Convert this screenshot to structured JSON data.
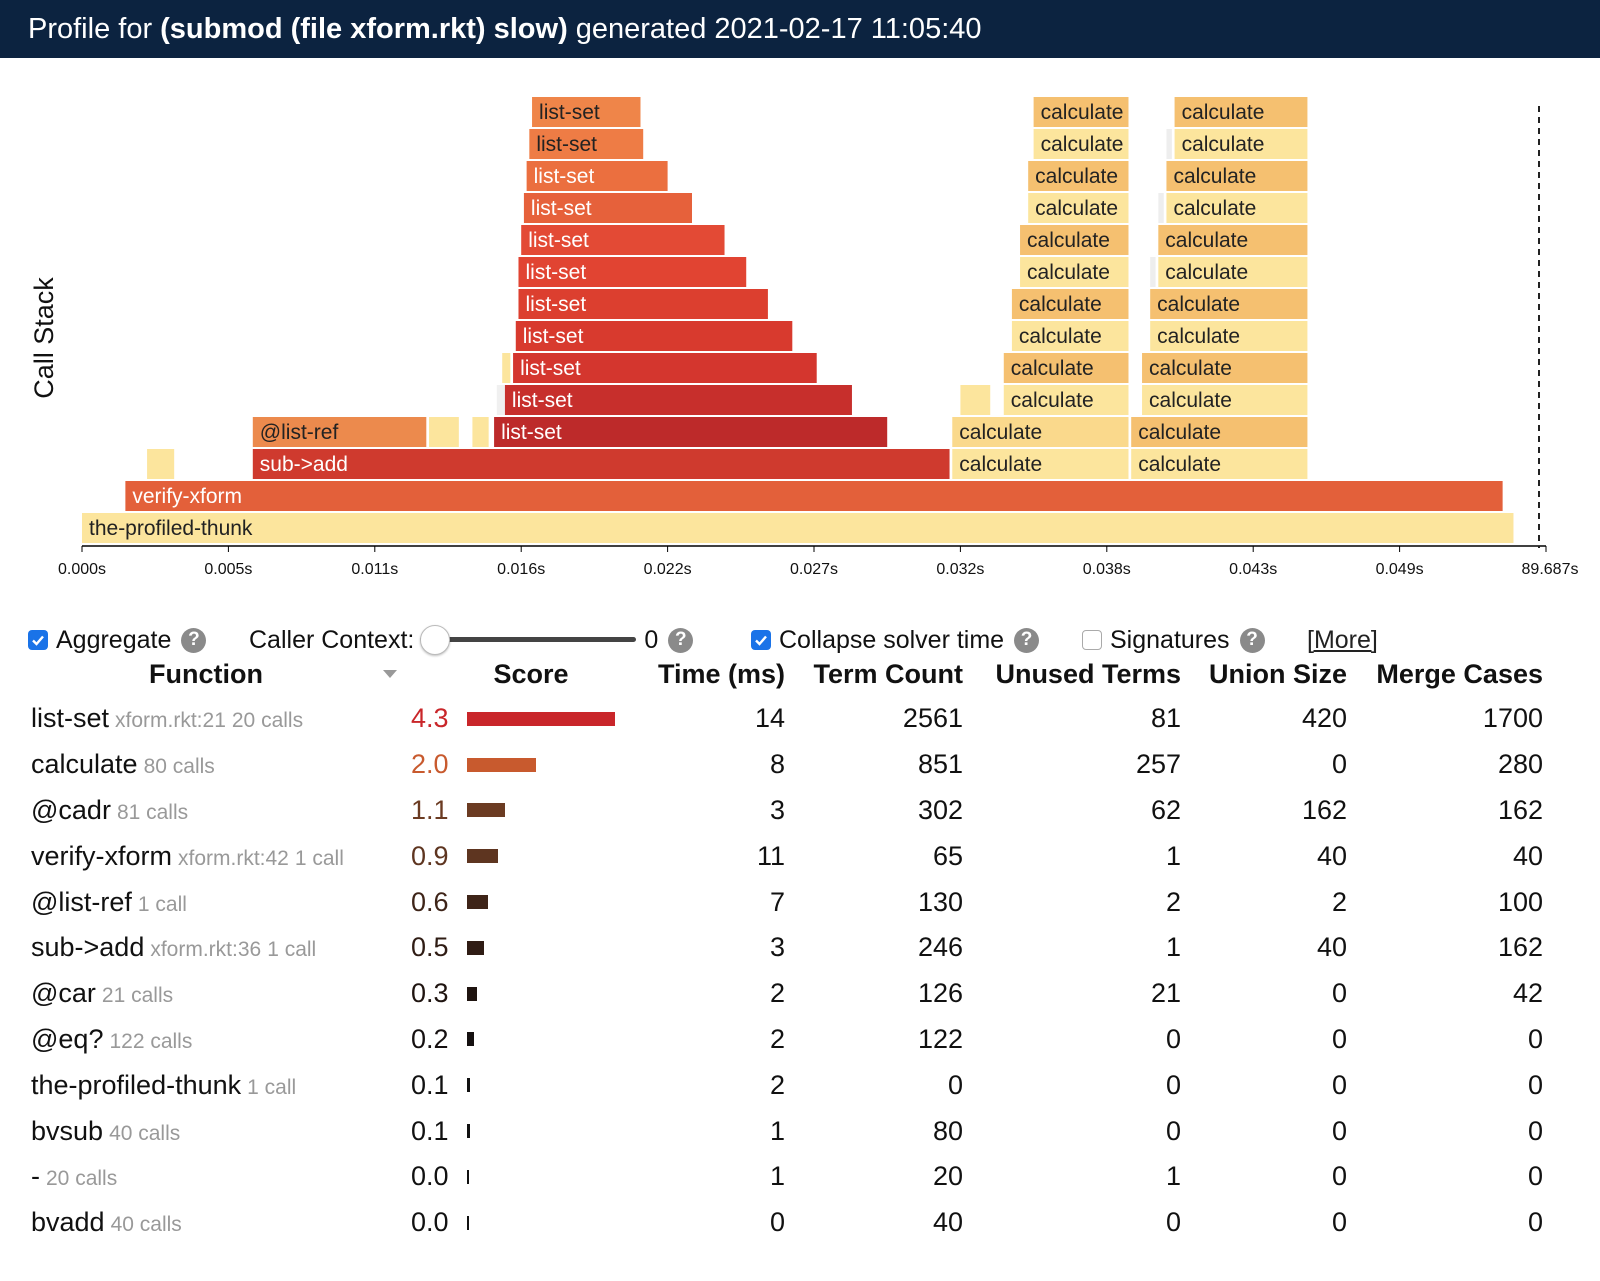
{
  "header": {
    "prefix": "Profile for",
    "name": "(submod (file xform.rkt) slow)",
    "generated_label": "generated",
    "generated_time": "2021-02-17 11:05:40"
  },
  "flamegraph": {
    "y_axis_label": "Call Stack",
    "ticks": [
      "0.000s",
      "0.005s",
      "0.011s",
      "0.016s",
      "0.022s",
      "0.027s",
      "0.032s",
      "0.038s",
      "0.043s",
      "0.049s",
      "89.687s"
    ],
    "frames": [
      {
        "label": "the-profiled-thunk",
        "t0": 0.0,
        "t1": 0.0528,
        "depth": 0,
        "color": "#fce59d"
      },
      {
        "label": "verify-xform",
        "t0": 0.0016,
        "t1": 0.0524,
        "depth": 1,
        "color": "#e3603a"
      },
      {
        "label": "",
        "t0": 0.0024,
        "t1": 0.0034,
        "depth": 2,
        "color": "#fce59d"
      },
      {
        "label": "sub->add",
        "t0": 0.0063,
        "t1": 0.032,
        "depth": 2,
        "color": "#cf3a2e"
      },
      {
        "label": "calculate",
        "t0": 0.0321,
        "t1": 0.0386,
        "depth": 2,
        "color": "#fce59d"
      },
      {
        "label": "calculate",
        "t0": 0.0387,
        "t1": 0.0452,
        "depth": 2,
        "color": "#fce59d"
      },
      {
        "label": "@list-ref",
        "t0": 0.0063,
        "t1": 0.0127,
        "depth": 3,
        "color": "#ec8a4d"
      },
      {
        "label": "",
        "t0": 0.0128,
        "t1": 0.0139,
        "depth": 3,
        "color": "#fce59d"
      },
      {
        "label": "",
        "t0": 0.0144,
        "t1": 0.015,
        "depth": 3,
        "color": "#fce59d"
      },
      {
        "label": "list-set",
        "t0": 0.0152,
        "t1": 0.0297,
        "depth": 3,
        "color": "#bd2a2a"
      },
      {
        "label": "calculate",
        "t0": 0.0321,
        "t1": 0.0386,
        "depth": 3,
        "color": "#fad98c"
      },
      {
        "label": "calculate",
        "t0": 0.0387,
        "t1": 0.0452,
        "depth": 3,
        "color": "#f5c070"
      },
      {
        "label": "",
        "t0": 0.0153,
        "t1": 0.0156,
        "depth": 4,
        "color": "#f0f0f0"
      },
      {
        "label": "list-set",
        "t0": 0.0156,
        "t1": 0.0284,
        "depth": 4,
        "color": "#c72f2c"
      },
      {
        "label": "",
        "t0": 0.0324,
        "t1": 0.0335,
        "depth": 4,
        "color": "#fce59d"
      },
      {
        "label": "calculate",
        "t0": 0.034,
        "t1": 0.0386,
        "depth": 4,
        "color": "#fce59d"
      },
      {
        "label": "calculate",
        "t0": 0.0391,
        "t1": 0.0452,
        "depth": 4,
        "color": "#fce59d"
      },
      {
        "label": "",
        "t0": 0.0155,
        "t1": 0.0158,
        "depth": 5,
        "color": "#fce59d"
      },
      {
        "label": "list-set",
        "t0": 0.0159,
        "t1": 0.0271,
        "depth": 5,
        "color": "#d4362e"
      },
      {
        "label": "calculate",
        "t0": 0.034,
        "t1": 0.0386,
        "depth": 5,
        "color": "#f5c070"
      },
      {
        "label": "calculate",
        "t0": 0.0391,
        "t1": 0.0452,
        "depth": 5,
        "color": "#f5c070"
      },
      {
        "label": "list-set",
        "t0": 0.016,
        "t1": 0.0262,
        "depth": 6,
        "color": "#d83a2e"
      },
      {
        "label": "calculate",
        "t0": 0.0343,
        "t1": 0.0386,
        "depth": 6,
        "color": "#fce59d"
      },
      {
        "label": "calculate",
        "t0": 0.0394,
        "t1": 0.0452,
        "depth": 6,
        "color": "#fce59d"
      },
      {
        "label": "list-set",
        "t0": 0.0161,
        "t1": 0.0253,
        "depth": 7,
        "color": "#dc3f2f"
      },
      {
        "label": "calculate",
        "t0": 0.0343,
        "t1": 0.0386,
        "depth": 7,
        "color": "#f5c070"
      },
      {
        "label": "calculate",
        "t0": 0.0394,
        "t1": 0.0452,
        "depth": 7,
        "color": "#f5c070"
      },
      {
        "label": "list-set",
        "t0": 0.0161,
        "t1": 0.0245,
        "depth": 8,
        "color": "#e14432"
      },
      {
        "label": "calculate",
        "t0": 0.0346,
        "t1": 0.0386,
        "depth": 8,
        "color": "#fce59d"
      },
      {
        "label": "",
        "t0": 0.0394,
        "t1": 0.0396,
        "depth": 8,
        "color": "#eeeeee"
      },
      {
        "label": "calculate",
        "t0": 0.0397,
        "t1": 0.0452,
        "depth": 8,
        "color": "#fce59d"
      },
      {
        "label": "list-set",
        "t0": 0.0162,
        "t1": 0.0237,
        "depth": 9,
        "color": "#e34a35"
      },
      {
        "label": "calculate",
        "t0": 0.0346,
        "t1": 0.0386,
        "depth": 9,
        "color": "#f5c070"
      },
      {
        "label": "calculate",
        "t0": 0.0397,
        "t1": 0.0452,
        "depth": 9,
        "color": "#f5c070"
      },
      {
        "label": "list-set",
        "t0": 0.0163,
        "t1": 0.0225,
        "depth": 10,
        "color": "#e6613b"
      },
      {
        "label": "calculate",
        "t0": 0.0349,
        "t1": 0.0386,
        "depth": 10,
        "color": "#fce59d"
      },
      {
        "label": "",
        "t0": 0.0397,
        "t1": 0.0399,
        "depth": 10,
        "color": "#eeeeee"
      },
      {
        "label": "calculate",
        "t0": 0.04,
        "t1": 0.0452,
        "depth": 10,
        "color": "#fce59d"
      },
      {
        "label": "list-set",
        "t0": 0.0164,
        "t1": 0.0216,
        "depth": 11,
        "color": "#eb6f3f"
      },
      {
        "label": "calculate",
        "t0": 0.0349,
        "t1": 0.0386,
        "depth": 11,
        "color": "#f5c070"
      },
      {
        "label": "calculate",
        "t0": 0.04,
        "t1": 0.0452,
        "depth": 11,
        "color": "#f5c070"
      },
      {
        "label": "list-set",
        "t0": 0.0165,
        "t1": 0.0207,
        "depth": 12,
        "color": "#ee7c45"
      },
      {
        "label": "calculate",
        "t0": 0.0351,
        "t1": 0.0386,
        "depth": 12,
        "color": "#fce59d"
      },
      {
        "label": "",
        "t0": 0.04,
        "t1": 0.0402,
        "depth": 12,
        "color": "#eeeeee"
      },
      {
        "label": "calculate",
        "t0": 0.0403,
        "t1": 0.0452,
        "depth": 12,
        "color": "#fce59d"
      },
      {
        "label": "list-set",
        "t0": 0.0166,
        "t1": 0.0206,
        "depth": 13,
        "color": "#ef8549"
      },
      {
        "label": "calculate",
        "t0": 0.0351,
        "t1": 0.0386,
        "depth": 13,
        "color": "#f5c070"
      },
      {
        "label": "calculate",
        "t0": 0.0403,
        "t1": 0.0452,
        "depth": 13,
        "color": "#f5c070"
      }
    ]
  },
  "controls": {
    "aggregate_label": "Aggregate",
    "caller_context_label": "Caller Context:",
    "caller_context_value": "0",
    "collapse_label": "Collapse solver time",
    "signatures_label": "Signatures",
    "more_label": "[More]",
    "aggregate_checked": true,
    "collapse_checked": true,
    "signatures_checked": false
  },
  "table": {
    "headers": {
      "function": "Function",
      "score": "Score",
      "time": "Time (ms)",
      "term_count": "Term Count",
      "unused_terms": "Unused Terms",
      "union_size": "Union Size",
      "merge_cases": "Merge Cases"
    },
    "rows": [
      {
        "name": "list-set",
        "source": "xform.rkt:21",
        "calls": "20 calls",
        "score": "4.3",
        "score_num": 4.3,
        "score_color": "#c9262a",
        "time": "14",
        "term_count": "2561",
        "unused_terms": "81",
        "union_size": "420",
        "merge_cases": "1700"
      },
      {
        "name": "calculate",
        "source": "",
        "calls": "80 calls",
        "score": "2.0",
        "score_num": 2.0,
        "score_color": "#c85a2e",
        "time": "8",
        "term_count": "851",
        "unused_terms": "257",
        "union_size": "0",
        "merge_cases": "280"
      },
      {
        "name": "@cadr",
        "source": "",
        "calls": "81 calls",
        "score": "1.1",
        "score_num": 1.1,
        "score_color": "#6b3b22",
        "time": "3",
        "term_count": "302",
        "unused_terms": "62",
        "union_size": "162",
        "merge_cases": "162"
      },
      {
        "name": "verify-xform",
        "source": "xform.rkt:42",
        "calls": "1 call",
        "score": "0.9",
        "score_num": 0.9,
        "score_color": "#5e3520",
        "time": "11",
        "term_count": "65",
        "unused_terms": "1",
        "union_size": "40",
        "merge_cases": "40"
      },
      {
        "name": "@list-ref",
        "source": "",
        "calls": "1 call",
        "score": "0.6",
        "score_num": 0.6,
        "score_color": "#3e2418",
        "time": "7",
        "term_count": "130",
        "unused_terms": "2",
        "union_size": "2",
        "merge_cases": "100"
      },
      {
        "name": "sub->add",
        "source": "xform.rkt:36",
        "calls": "1 call",
        "score": "0.5",
        "score_num": 0.5,
        "score_color": "#2f1c14",
        "time": "3",
        "term_count": "246",
        "unused_terms": "1",
        "union_size": "40",
        "merge_cases": "162"
      },
      {
        "name": "@car",
        "source": "",
        "calls": "21 calls",
        "score": "0.3",
        "score_num": 0.3,
        "score_color": "#1f1410",
        "time": "2",
        "term_count": "126",
        "unused_terms": "21",
        "union_size": "0",
        "merge_cases": "42"
      },
      {
        "name": "@eq?",
        "source": "",
        "calls": "122 calls",
        "score": "0.2",
        "score_num": 0.2,
        "score_color": "#151010",
        "time": "2",
        "term_count": "122",
        "unused_terms": "0",
        "union_size": "0",
        "merge_cases": "0"
      },
      {
        "name": "the-profiled-thunk",
        "source": "",
        "calls": "1 call",
        "score": "0.1",
        "score_num": 0.1,
        "score_color": "#111111",
        "time": "2",
        "term_count": "0",
        "unused_terms": "0",
        "union_size": "0",
        "merge_cases": "0"
      },
      {
        "name": "bvsub",
        "source": "",
        "calls": "40 calls",
        "score": "0.1",
        "score_num": 0.1,
        "score_color": "#111111",
        "time": "1",
        "term_count": "80",
        "unused_terms": "0",
        "union_size": "0",
        "merge_cases": "0"
      },
      {
        "name": "-",
        "source": "",
        "calls": "20 calls",
        "score": "0.0",
        "score_num": 0.03,
        "score_color": "#111111",
        "time": "1",
        "term_count": "20",
        "unused_terms": "1",
        "union_size": "0",
        "merge_cases": "0"
      },
      {
        "name": "bvadd",
        "source": "",
        "calls": "40 calls",
        "score": "0.0",
        "score_num": 0.03,
        "score_color": "#111111",
        "time": "0",
        "term_count": "40",
        "unused_terms": "0",
        "union_size": "0",
        "merge_cases": "0"
      }
    ]
  }
}
